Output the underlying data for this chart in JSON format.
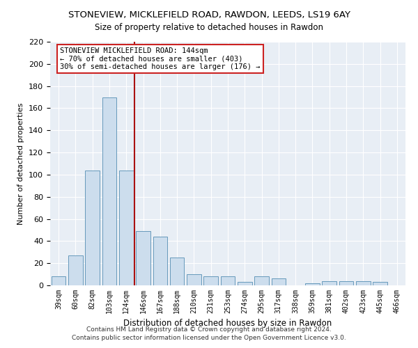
{
  "title": "STONEVIEW, MICKLEFIELD ROAD, RAWDON, LEEDS, LS19 6AY",
  "subtitle": "Size of property relative to detached houses in Rawdon",
  "xlabel": "Distribution of detached houses by size in Rawdon",
  "ylabel": "Number of detached properties",
  "categories": [
    "39sqm",
    "60sqm",
    "82sqm",
    "103sqm",
    "124sqm",
    "146sqm",
    "167sqm",
    "188sqm",
    "210sqm",
    "231sqm",
    "253sqm",
    "274sqm",
    "295sqm",
    "317sqm",
    "338sqm",
    "359sqm",
    "381sqm",
    "402sqm",
    "423sqm",
    "445sqm",
    "466sqm"
  ],
  "values": [
    8,
    27,
    104,
    170,
    104,
    49,
    44,
    25,
    10,
    8,
    8,
    3,
    8,
    6,
    0,
    2,
    4,
    4,
    4,
    3,
    0
  ],
  "bar_color": "#ccdded",
  "bar_edge_color": "#6699bb",
  "vline_color": "#aa1111",
  "vline_pos": 4.5,
  "annotation_text": "STONEVIEW MICKLEFIELD ROAD: 144sqm\n← 70% of detached houses are smaller (403)\n30% of semi-detached houses are larger (176) →",
  "annotation_box_facecolor": "#ffffff",
  "annotation_box_edgecolor": "#cc2222",
  "ylim": [
    0,
    220
  ],
  "yticks": [
    0,
    20,
    40,
    60,
    80,
    100,
    120,
    140,
    160,
    180,
    200,
    220
  ],
  "footer": "Contains HM Land Registry data © Crown copyright and database right 2024.\nContains public sector information licensed under the Open Government Licence v3.0.",
  "plot_bg_color": "#e8eef5",
  "fig_bg_color": "#ffffff",
  "grid_color": "#ffffff",
  "title_fontsize": 9.5,
  "subtitle_fontsize": 8.5,
  "ylabel_fontsize": 8,
  "xlabel_fontsize": 8.5,
  "tick_fontsize": 7,
  "ytick_fontsize": 8,
  "ann_fontsize": 7.5,
  "footer_fontsize": 6.5
}
